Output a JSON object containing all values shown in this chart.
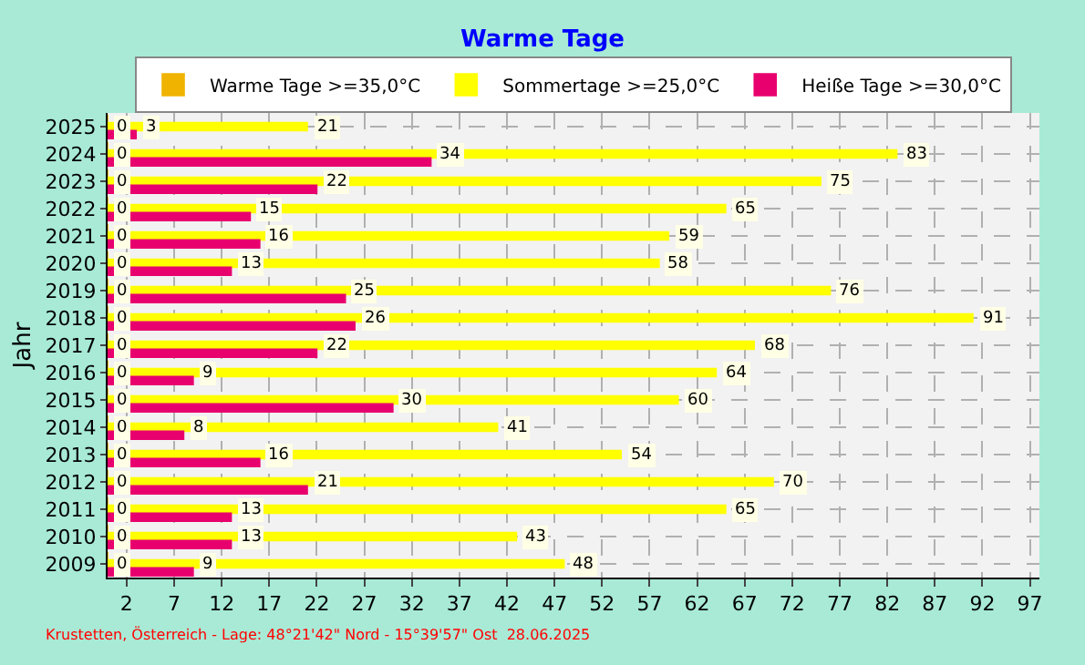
{
  "chart_data": {
    "type": "bar",
    "orientation": "horizontal",
    "title": "Warme Tage",
    "ylabel": "Jahr",
    "categories": [
      "2025",
      "2024",
      "2023",
      "2022",
      "2021",
      "2020",
      "2019",
      "2018",
      "2017",
      "2016",
      "2015",
      "2014",
      "2013",
      "2012",
      "2011",
      "2010",
      "2009"
    ],
    "series": [
      {
        "name": "Warme Tage >=35,0°C",
        "color": "#f0b400",
        "values": [
          0,
          0,
          0,
          0,
          0,
          0,
          0,
          0,
          0,
          0,
          0,
          0,
          0,
          0,
          0,
          0,
          0
        ]
      },
      {
        "name": "Sommertage >=25,0°C",
        "color": "#ffff00",
        "values": [
          21,
          83,
          75,
          65,
          59,
          58,
          76,
          91,
          68,
          64,
          60,
          41,
          54,
          70,
          65,
          43,
          48
        ]
      },
      {
        "name": "Heiße Tage >=30,0°C",
        "color": "#e8006e",
        "values": [
          3,
          34,
          22,
          15,
          16,
          13,
          25,
          26,
          22,
          9,
          30,
          8,
          16,
          21,
          13,
          13,
          9
        ]
      }
    ],
    "xlim": [
      0,
      98
    ],
    "xticks": [
      2,
      7,
      12,
      17,
      22,
      27,
      32,
      37,
      42,
      47,
      52,
      57,
      62,
      67,
      72,
      77,
      82,
      87,
      92,
      97
    ],
    "grid": true,
    "legend": "top",
    "data_labels": true,
    "annotations": [
      "Krustetten, Österreich - Lage: 48°21'42\" Nord - 15°39'57\" Ost  28.06.2025"
    ]
  }
}
